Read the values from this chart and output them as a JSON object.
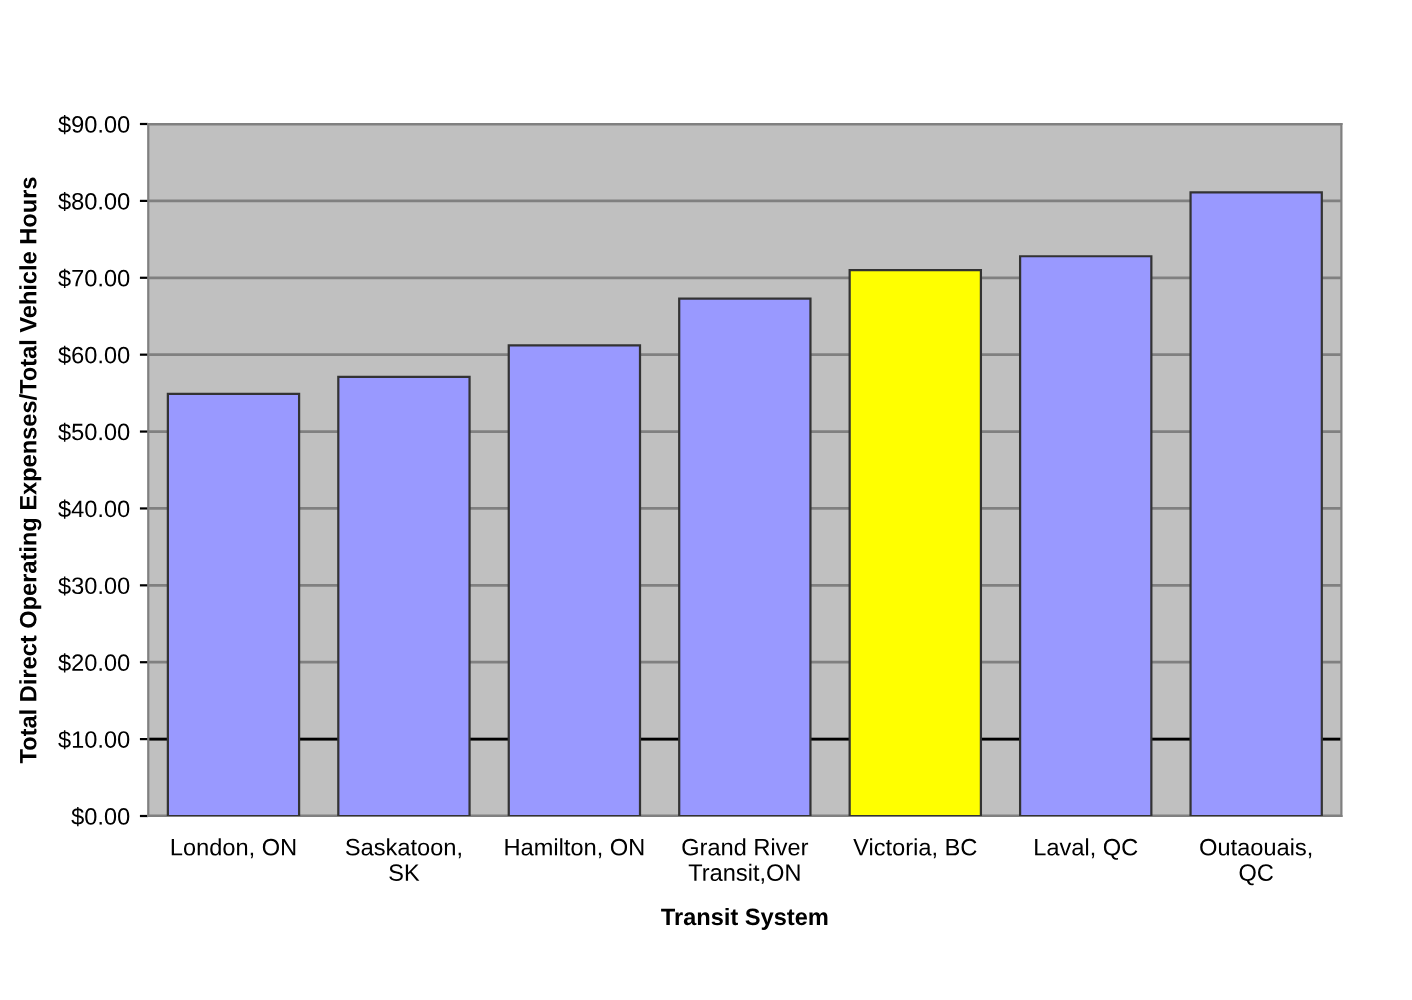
{
  "chart_data": {
    "type": "bar",
    "xlabel": "Transit System",
    "ylabel": "Total Direct Operating Expenses/Total Vehicle Hours",
    "categories": [
      "London, ON",
      "Saskatoon,\nSK",
      "Hamilton, ON",
      "Grand River\nTransit,ON",
      "Victoria, BC",
      "Laval, QC",
      "Outaouais,\nQC"
    ],
    "values": [
      54.9,
      57.1,
      61.2,
      67.3,
      71.0,
      72.8,
      81.1
    ],
    "colors": [
      "#9999ff",
      "#9999ff",
      "#9999ff",
      "#9999ff",
      "#ffff00",
      "#9999ff",
      "#9999ff"
    ],
    "ylim": [
      0,
      90
    ],
    "yticks": [
      {
        "value": 0,
        "label": "$0.00"
      },
      {
        "value": 10,
        "label": "$10.00"
      },
      {
        "value": 20,
        "label": "$20.00"
      },
      {
        "value": 30,
        "label": "$30.00"
      },
      {
        "value": 40,
        "label": "$40.00"
      },
      {
        "value": 50,
        "label": "$50.00"
      },
      {
        "value": 60,
        "label": "$60.00"
      },
      {
        "value": 70,
        "label": "$70.00"
      },
      {
        "value": 80,
        "label": "$80.00"
      },
      {
        "value": 90,
        "label": "$90.00"
      }
    ],
    "grid": "y",
    "ref_lines": [
      {
        "axis": "y",
        "value": 10,
        "color": "#000000"
      }
    ]
  }
}
